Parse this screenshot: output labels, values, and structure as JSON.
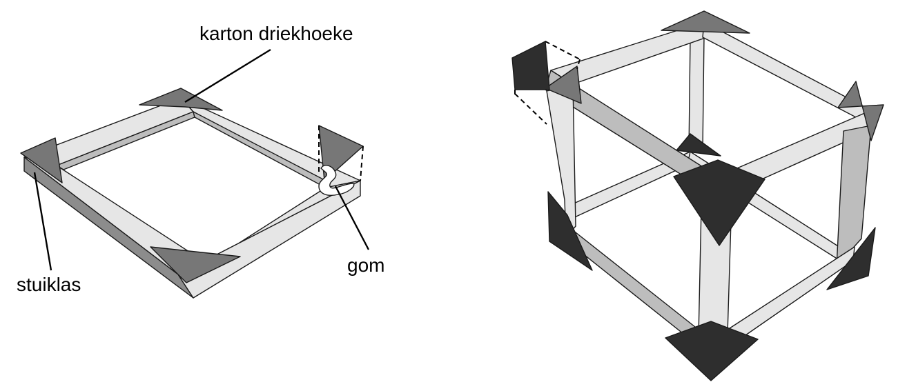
{
  "labels": {
    "triangles": "karton driekhoeke",
    "rod": "stuiklas",
    "glue": "gom"
  },
  "colors": {
    "bar_light": "#e6e6e6",
    "bar_mid": "#bdbdbd",
    "bar_dark": "#8c8c8c",
    "triangle_light": "#777777",
    "triangle_dark": "#2e2e2e",
    "outline": "#1a1a1a",
    "background": "#ffffff"
  }
}
